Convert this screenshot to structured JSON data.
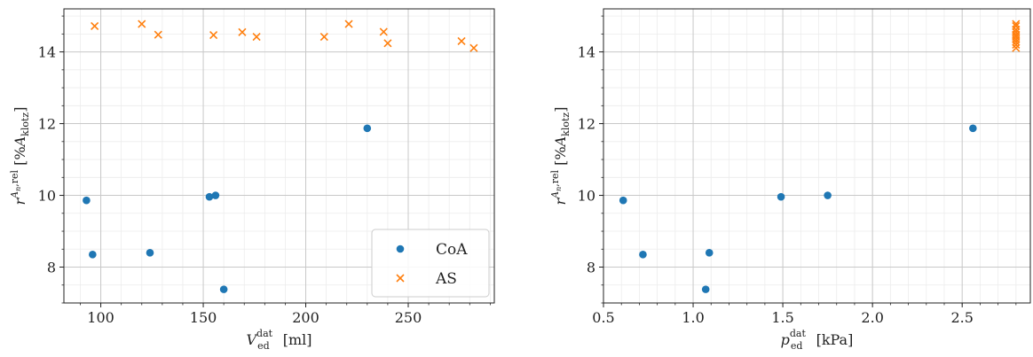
{
  "chart_data": [
    {
      "type": "scatter",
      "xlabel_main": "V",
      "xlabel_sup": "dat",
      "xlabel_sub": "ed",
      "xlabel_unit": "[ml]",
      "ylabel": "r^{A_n,rel} [%A_klotz]",
      "xlim": [
        82,
        292
      ],
      "ylim": [
        7.0,
        15.2
      ],
      "xticks": [
        100,
        150,
        200,
        250
      ],
      "xtick_labels": [
        "100",
        "150",
        "200",
        "250"
      ],
      "yticks": [
        8,
        10,
        12,
        14
      ],
      "ytick_labels": [
        "8",
        "10",
        "12",
        "14"
      ],
      "grid": true,
      "legend": "lower-right",
      "series": [
        {
          "name": "CoA",
          "marker": "circle",
          "color": "#1f77b4",
          "points": [
            [
              93,
              9.86
            ],
            [
              96,
              8.35
            ],
            [
              124,
              8.4
            ],
            [
              153,
              9.96
            ],
            [
              156,
              10.0
            ],
            [
              160,
              7.38
            ],
            [
              230,
              11.87
            ]
          ]
        },
        {
          "name": "AS",
          "marker": "x",
          "color": "#ff7f0e",
          "points": [
            [
              97,
              14.72
            ],
            [
              120,
              14.78
            ],
            [
              128,
              14.48
            ],
            [
              155,
              14.47
            ],
            [
              169,
              14.55
            ],
            [
              176,
              14.42
            ],
            [
              209,
              14.42
            ],
            [
              221,
              14.78
            ],
            [
              238,
              14.56
            ],
            [
              240,
              14.24
            ],
            [
              276,
              14.3
            ],
            [
              282,
              14.11
            ]
          ]
        }
      ]
    },
    {
      "type": "scatter",
      "xlabel_main": "p",
      "xlabel_sup": "dat",
      "xlabel_sub": "ed",
      "xlabel_unit": "[kPa]",
      "ylabel": "r^{A_n,rel} [%A_klotz]",
      "xlim": [
        0.5,
        2.88
      ],
      "ylim": [
        7.0,
        15.2
      ],
      "xticks": [
        0.5,
        1.0,
        1.5,
        2.0,
        2.5
      ],
      "xtick_labels": [
        "0.5",
        "1.0",
        "1.5",
        "2.0",
        "2.5"
      ],
      "yticks": [
        8,
        10,
        12,
        14
      ],
      "ytick_labels": [
        "8",
        "10",
        "12",
        "14"
      ],
      "grid": true,
      "series": [
        {
          "name": "CoA",
          "marker": "circle",
          "color": "#1f77b4",
          "points": [
            [
              0.61,
              9.86
            ],
            [
              0.72,
              8.35
            ],
            [
              1.07,
              7.38
            ],
            [
              1.09,
              8.4
            ],
            [
              1.49,
              9.96
            ],
            [
              1.75,
              10.0
            ],
            [
              2.56,
              11.87
            ]
          ]
        },
        {
          "name": "AS",
          "marker": "x",
          "color": "#ff7f0e",
          "points": [
            [
              2.8,
              14.78
            ],
            [
              2.8,
              14.72
            ],
            [
              2.8,
              14.62
            ],
            [
              2.8,
              14.55
            ],
            [
              2.8,
              14.48
            ],
            [
              2.8,
              14.42
            ],
            [
              2.8,
              14.35
            ],
            [
              2.8,
              14.28
            ],
            [
              2.8,
              14.2
            ],
            [
              2.8,
              14.11
            ]
          ]
        }
      ]
    }
  ]
}
